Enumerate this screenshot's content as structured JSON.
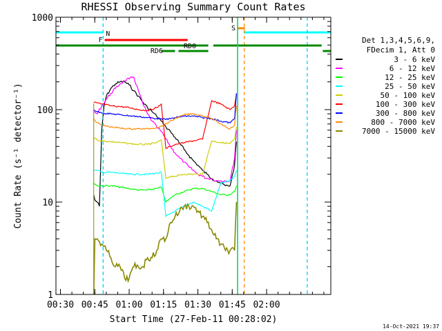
{
  "chart_data": {
    "type": "line",
    "title": "RHESSI Observing Summary Count Rates",
    "xlabel": "Start Time (27-Feb-11 00:28:02)",
    "ylabel": "Count Rate (s⁻¹ detector⁻¹)",
    "yscale": "log",
    "ylim": [
      1,
      1000
    ],
    "xlim_minutes": [
      0,
      120
    ],
    "x_tick_labels": [
      "00:30",
      "00:45",
      "01:00",
      "01:15",
      "01:30",
      "01:45",
      "02:00"
    ],
    "y_tick_labels": [
      "1",
      "10",
      "100",
      "1000"
    ],
    "legend_title_lines": [
      "Det 1,3,4,5,6,9,",
      "FDecim 1, Att 0"
    ],
    "timestamp": "14-Oct-2021 19:37",
    "flag_labels": [
      "N",
      "F",
      "RD0",
      "RD6",
      "S"
    ],
    "series": [
      {
        "name": "3 - 6 keV",
        "color": "#000000",
        "x": [
          16.5,
          17,
          18,
          19,
          20,
          21,
          22,
          24,
          26,
          28,
          30,
          32,
          34,
          36,
          38,
          40,
          42,
          44,
          46,
          48,
          50,
          52,
          54,
          56,
          58,
          60,
          62,
          64,
          66,
          68,
          70,
          72,
          74,
          76,
          78,
          78.8
        ],
        "y": [
          12,
          10.5,
          10,
          9,
          60,
          110,
          140,
          170,
          190,
          200,
          200,
          185,
          160,
          140,
          120,
          105,
          95,
          85,
          75,
          65,
          58,
          50,
          43,
          37,
          32,
          28,
          25,
          22,
          20,
          18,
          17,
          16,
          15,
          15,
          25,
          45
        ]
      },
      {
        "name": "6 - 12 keV",
        "color": "#ff00ff",
        "x": [
          16.5,
          18,
          20,
          22,
          24,
          26,
          28,
          30,
          32,
          34,
          36,
          38,
          40,
          42,
          44,
          46,
          48,
          50,
          52,
          54,
          56,
          58,
          60,
          62,
          64,
          66,
          68,
          70,
          72,
          74,
          76,
          78,
          78.8
        ],
        "y": [
          95,
          90,
          110,
          130,
          150,
          170,
          190,
          205,
          215,
          225,
          160,
          115,
          90,
          75,
          65,
          58,
          48,
          40,
          34,
          30,
          27,
          24,
          22,
          20,
          19,
          18,
          18,
          17,
          17,
          17,
          17,
          30,
          60
        ]
      },
      {
        "name": "12 - 25 keV",
        "color": "#00ff00",
        "x": [
          16.5,
          18,
          20,
          24,
          28,
          32,
          36,
          40,
          44,
          46,
          48,
          50,
          52,
          56,
          60,
          64,
          68,
          72,
          76,
          78,
          78.8
        ],
        "y": [
          16,
          15,
          15,
          15,
          14.5,
          14,
          13.5,
          13.5,
          14,
          14.5,
          10,
          11,
          12,
          13,
          14,
          14,
          13,
          12,
          12,
          13,
          15
        ]
      },
      {
        "name": "25 - 50 keV",
        "color": "#00ffff",
        "x": [
          16.5,
          18,
          20,
          24,
          28,
          32,
          36,
          40,
          44,
          46,
          48,
          50,
          52,
          56,
          60,
          64,
          68,
          72,
          76,
          78,
          78.8
        ],
        "y": [
          22,
          22,
          21,
          21,
          20.5,
          20,
          20,
          20,
          20.5,
          21,
          7,
          7.5,
          8,
          9,
          10,
          9,
          8,
          16,
          17,
          19,
          22
        ]
      },
      {
        "name": "50 - 100 keV",
        "color": "#cccc00",
        "x": [
          16.5,
          18,
          20,
          24,
          28,
          32,
          36,
          40,
          44,
          46,
          48,
          50,
          52,
          56,
          60,
          64,
          68,
          72,
          76,
          78,
          78.8
        ],
        "y": [
          50,
          47,
          46,
          45,
          44,
          43,
          42,
          42,
          44,
          47,
          18,
          19,
          19,
          20,
          20,
          20,
          46,
          44,
          43,
          48,
          65
        ]
      },
      {
        "name": "100 - 300 keV",
        "color": "#ff0000",
        "x": [
          16.5,
          18,
          20,
          24,
          28,
          32,
          36,
          40,
          44,
          46,
          48,
          50,
          52,
          56,
          60,
          64,
          68,
          72,
          76,
          78,
          78.8
        ],
        "y": [
          120,
          118,
          115,
          110,
          108,
          105,
          100,
          98,
          105,
          115,
          38,
          40,
          42,
          44,
          46,
          48,
          125,
          115,
          100,
          110,
          150
        ]
      },
      {
        "name": "300 - 800 keV",
        "color": "#0000ff",
        "x": [
          16.5,
          18,
          20,
          24,
          28,
          32,
          36,
          40,
          44,
          46,
          48,
          50,
          52,
          56,
          60,
          64,
          68,
          72,
          76,
          78,
          78.8
        ],
        "y": [
          100,
          95,
          92,
          90,
          88,
          86,
          84,
          82,
          80,
          80,
          78,
          80,
          82,
          85,
          85,
          82,
          80,
          75,
          72,
          80,
          150
        ]
      },
      {
        "name": "800 - 7000 keV",
        "color": "#ff8800",
        "x": [
          16.5,
          18,
          20,
          24,
          28,
          32,
          36,
          40,
          44,
          46,
          48,
          52,
          56,
          60,
          64,
          68,
          72,
          76,
          78,
          78.8
        ],
        "y": [
          80,
          72,
          68,
          65,
          63,
          62,
          62,
          62,
          64,
          66,
          70,
          80,
          88,
          90,
          86,
          80,
          70,
          62,
          68,
          110
        ]
      },
      {
        "name": "7000 - 15000 keV",
        "color": "#888800",
        "x": [
          16.5,
          17,
          18,
          20,
          22,
          24,
          26,
          28,
          30,
          32,
          34,
          36,
          38,
          40,
          42,
          44,
          46,
          48,
          50,
          52,
          54,
          56,
          58,
          60,
          62,
          64,
          66,
          68,
          70,
          72,
          74,
          76,
          78,
          78.8
        ],
        "y": [
          1,
          4,
          4,
          3.5,
          3,
          2.5,
          2,
          2,
          1.5,
          1.5,
          2,
          2,
          2,
          2.5,
          2.5,
          3,
          4,
          4,
          6,
          7,
          8,
          9,
          9,
          9,
          8,
          7,
          6,
          5,
          4,
          3.5,
          3,
          3,
          3,
          10
        ]
      }
    ]
  }
}
